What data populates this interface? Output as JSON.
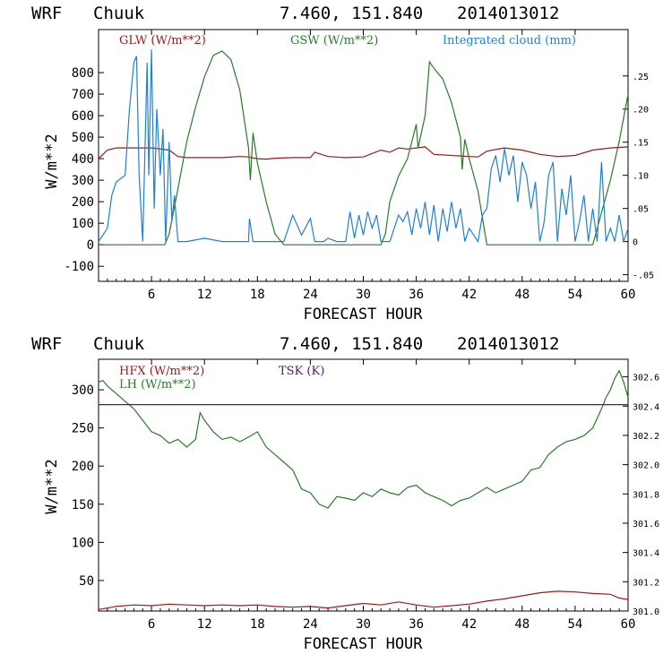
{
  "charts": [
    {
      "header": {
        "model": "WRF",
        "station": "Chuuk",
        "coords": "7.460, 151.840",
        "init": "2014013012"
      },
      "legend": [
        {
          "label": "GLW (W/m**2)",
          "color": "#a01818"
        },
        {
          "label": "GSW (W/m**2)",
          "color": "#2a7a2a"
        },
        {
          "label": "Integrated cloud (mm)",
          "color": "#1f80d8"
        }
      ]
    },
    {
      "header": {
        "model": "WRF",
        "station": "Chuuk",
        "coords": "7.460, 151.840",
        "init": "2014013012"
      },
      "legend": [
        {
          "label": "HFX (W/m**2)",
          "color": "#a01818"
        },
        {
          "label": "LH  (W/m**2)",
          "color": "#2a7a2a"
        },
        {
          "label": "TSK (K)",
          "color": "#5a1670"
        }
      ]
    }
  ],
  "chart_data": [
    {
      "type": "line",
      "xlabel": "FORECAST HOUR",
      "ylabel": "W/m**2",
      "xlim": [
        0,
        60
      ],
      "ylim": [
        -170,
        1000
      ],
      "y2lim": [
        -0.06,
        0.32
      ],
      "xticks": [
        6,
        12,
        18,
        24,
        30,
        36,
        42,
        48,
        54,
        60
      ],
      "yticks": [
        -100,
        0,
        100,
        200,
        300,
        400,
        500,
        600,
        700,
        800
      ],
      "y2ticks": [
        -0.05,
        0,
        0.05,
        0.1,
        0.15,
        0.2,
        0.25
      ],
      "y2ticklabels": [
        "-.05",
        "0",
        ".05",
        ".10",
        ".15",
        ".20",
        ".25"
      ],
      "series": [
        {
          "name": "GLW (W/m**2)",
          "axis": "left",
          "color": "#a01818",
          "x": [
            0,
            0.5,
            1,
            2,
            4,
            6,
            8,
            9,
            10,
            12,
            14,
            16,
            17,
            18,
            19,
            20,
            22,
            24,
            24.5,
            26,
            28,
            30,
            32,
            33,
            34,
            35,
            36,
            37,
            38,
            40,
            42,
            43,
            44,
            46,
            48,
            50,
            52,
            54,
            56,
            58,
            60
          ],
          "y": [
            400,
            420,
            440,
            450,
            450,
            450,
            440,
            410,
            405,
            405,
            405,
            410,
            408,
            400,
            398,
            402,
            405,
            405,
            430,
            410,
            405,
            408,
            440,
            430,
            450,
            445,
            450,
            455,
            420,
            415,
            410,
            408,
            435,
            450,
            440,
            420,
            410,
            415,
            440,
            450,
            455
          ]
        },
        {
          "name": "GSW (W/m**2)",
          "axis": "left",
          "color": "#2a7a2a",
          "x": [
            0,
            7.5,
            8,
            9,
            10,
            11,
            12,
            13,
            14,
            15,
            16,
            17,
            17.2,
            17.5,
            18,
            19,
            20,
            21,
            32,
            32.5,
            33,
            34,
            35,
            36,
            36.2,
            37,
            37.5,
            38,
            39,
            40,
            41,
            41.2,
            41.5,
            42,
            43,
            44,
            56,
            57,
            58,
            59,
            60
          ],
          "y": [
            0,
            0,
            50,
            260,
            480,
            640,
            780,
            880,
            900,
            860,
            720,
            450,
            300,
            520,
            380,
            200,
            50,
            0,
            0,
            50,
            200,
            320,
            400,
            560,
            450,
            600,
            850,
            820,
            770,
            660,
            500,
            350,
            490,
            400,
            250,
            0,
            0,
            150,
            300,
            480,
            700
          ]
        },
        {
          "name": "Integrated cloud (mm)",
          "axis": "right",
          "color": "#1f80d8",
          "x": [
            0,
            1,
            1.5,
            2,
            3,
            3.5,
            4,
            4.3,
            4.6,
            5,
            5.5,
            5.7,
            6,
            6.3,
            6.6,
            7,
            7.3,
            7.6,
            8,
            8.3,
            8.6,
            9,
            9.5,
            10,
            12,
            14,
            16,
            17,
            17.1,
            17.5,
            18,
            19,
            21,
            22,
            23,
            24,
            24.5,
            25,
            25.5,
            26,
            27,
            28,
            28.5,
            29,
            29.5,
            30,
            30.5,
            31,
            31.5,
            32,
            33,
            33.5,
            34,
            34.5,
            35,
            35.5,
            36,
            36.5,
            37,
            37.5,
            38,
            38.5,
            39,
            39.5,
            40,
            40.5,
            41,
            41.5,
            42,
            42.5,
            43,
            43.5,
            44,
            44.5,
            45,
            45.5,
            46,
            46.5,
            47,
            47.5,
            48,
            48.5,
            49,
            49.5,
            50,
            50.5,
            51,
            51.5,
            52,
            52.5,
            53,
            53.5,
            54,
            54.5,
            55,
            55.5,
            56,
            56.5,
            57,
            57.5,
            58,
            58.5,
            59,
            59.5,
            60
          ],
          "y": [
            0,
            0.02,
            0.07,
            0.09,
            0.1,
            0.2,
            0.27,
            0.28,
            0.1,
            0.0,
            0.27,
            0.1,
            0.29,
            0.05,
            0.2,
            0.1,
            0.17,
            0.0,
            0.15,
            0.03,
            0.07,
            0.0,
            0.0,
            0.0,
            0.005,
            0.0,
            0.0,
            0.0,
            0.035,
            0.0,
            0.0,
            0.0,
            0.0,
            0.04,
            0.01,
            0.035,
            0.0,
            0.0,
            0.0,
            0.005,
            0.0,
            0.0,
            0.045,
            0.005,
            0.04,
            0.01,
            0.045,
            0.02,
            0.04,
            0.0,
            0.0,
            0.02,
            0.04,
            0.03,
            0.045,
            0.01,
            0.05,
            0.02,
            0.06,
            0.01,
            0.055,
            0.0,
            0.05,
            0.015,
            0.06,
            0.02,
            0.05,
            0.0,
            0.02,
            0.01,
            0.0,
            0.04,
            0.05,
            0.11,
            0.13,
            0.09,
            0.14,
            0.1,
            0.13,
            0.06,
            0.12,
            0.1,
            0.05,
            0.09,
            0.0,
            0.03,
            0.1,
            0.12,
            0.0,
            0.08,
            0.04,
            0.1,
            0.0,
            0.03,
            0.07,
            0.0,
            0.05,
            0.0,
            0.12,
            0.0,
            0.02,
            0.0,
            0.04,
            0.0,
            0.02
          ]
        }
      ]
    },
    {
      "type": "line",
      "xlabel": "FORECAST HOUR",
      "ylabel": "W/m**2",
      "xlim": [
        0,
        60
      ],
      "ylim": [
        10,
        340
      ],
      "y2lim": [
        301.0,
        302.72
      ],
      "xticks": [
        6,
        12,
        18,
        24,
        30,
        36,
        42,
        48,
        54,
        60
      ],
      "yticks": [
        50,
        100,
        150,
        200,
        250,
        300
      ],
      "y2ticks": [
        301.0,
        301.2,
        301.4,
        301.6,
        301.8,
        302.0,
        302.2,
        302.4,
        302.6
      ],
      "y2ticklabels": [
        "301.0",
        "301.2",
        "301.4",
        "301.6",
        "301.8",
        "302.0",
        "302.2",
        "302.4",
        "302.6"
      ],
      "series": [
        {
          "name": "HFX (W/m**2)",
          "axis": "left",
          "color": "#a01818",
          "x": [
            0,
            2,
            4,
            6,
            8,
            10,
            12,
            14,
            16,
            18,
            20,
            22,
            24,
            26,
            28,
            30,
            32,
            34,
            36,
            38,
            40,
            42,
            44,
            46,
            48,
            50,
            52,
            54,
            56,
            58,
            59,
            60
          ],
          "y": [
            12,
            16,
            18,
            17,
            19,
            18,
            17,
            18,
            17,
            18,
            16,
            15,
            16,
            14,
            17,
            20,
            18,
            22,
            18,
            15,
            17,
            19,
            23,
            26,
            30,
            34,
            36,
            35,
            33,
            32,
            27,
            25
          ]
        },
        {
          "name": "LH  (W/m**2)",
          "axis": "left",
          "color": "#2a7a2a",
          "x": [
            0,
            0.5,
            1,
            2,
            3,
            4,
            5,
            6,
            7,
            8,
            9,
            10,
            11,
            11.5,
            12,
            13,
            14,
            15,
            16,
            17,
            18,
            19,
            20,
            21,
            22,
            23,
            24,
            25,
            26,
            27,
            28,
            29,
            30,
            31,
            32,
            33,
            34,
            35,
            36,
            37,
            38,
            39,
            40,
            41,
            42,
            43,
            44,
            45,
            46,
            47,
            48,
            49,
            50,
            51,
            52,
            53,
            54,
            55,
            56,
            57,
            57.5,
            58,
            58.5,
            59,
            59.5,
            60
          ],
          "y": [
            310,
            312,
            305,
            295,
            285,
            275,
            260,
            245,
            240,
            230,
            235,
            225,
            235,
            270,
            260,
            245,
            235,
            238,
            232,
            238,
            245,
            225,
            215,
            205,
            195,
            170,
            165,
            150,
            145,
            160,
            158,
            155,
            165,
            160,
            170,
            165,
            162,
            172,
            175,
            165,
            160,
            155,
            148,
            155,
            158,
            165,
            172,
            165,
            170,
            175,
            180,
            195,
            198,
            215,
            225,
            232,
            235,
            240,
            250,
            275,
            290,
            300,
            315,
            325,
            310,
            290
          ]
        },
        {
          "name": "TSK (K)",
          "axis": "right",
          "color": "#5a1670",
          "x": [
            0,
            60
          ],
          "y": [
            302.41,
            302.41
          ]
        }
      ]
    }
  ]
}
